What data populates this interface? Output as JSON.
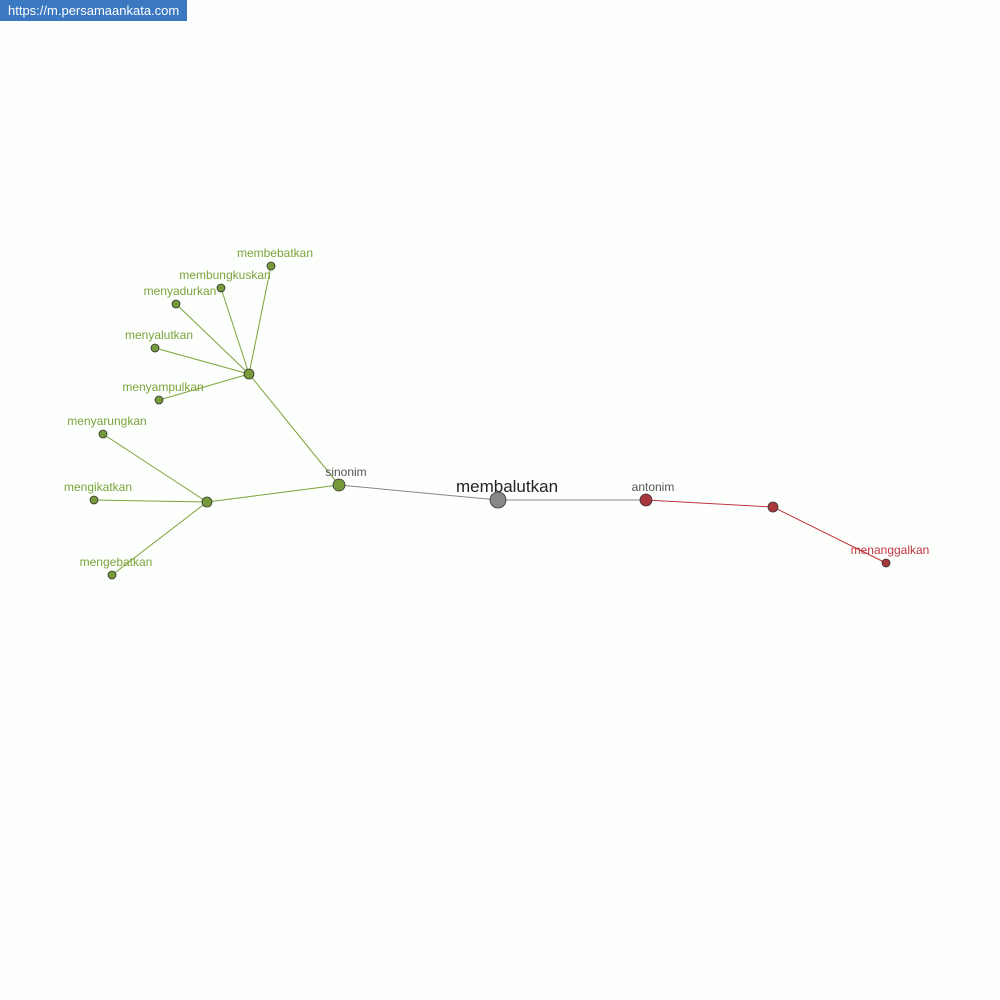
{
  "site_url": "https://m.persamaankata.com",
  "colors": {
    "synonym": "#7aa33a",
    "synonym_node": "#76993a",
    "antonym": "#c0353f",
    "antonym_node": "#a8383e",
    "root": "#888888",
    "relation_label": "#555555",
    "edge_root": "#888888"
  },
  "graph": {
    "root": {
      "id": "root",
      "label": "membalutkan"
    },
    "relations": [
      {
        "id": "syn",
        "label": "sinonim",
        "type": "synonym"
      },
      {
        "id": "ant",
        "label": "antonim",
        "type": "antonym"
      }
    ],
    "groups": [
      {
        "id": "g1",
        "parent": "syn",
        "type": "synonym",
        "words": [
          "membebatkan",
          "membungkuskan",
          "menyadurkan",
          "menyalutkan",
          "menyampulkan"
        ]
      },
      {
        "id": "g2",
        "parent": "syn",
        "type": "synonym",
        "words": [
          "menyarungkan",
          "mengikatkan",
          "mengebatkan"
        ]
      },
      {
        "id": "g3",
        "parent": "ant",
        "type": "antonym",
        "words": [
          "menanggalkan"
        ]
      }
    ]
  }
}
